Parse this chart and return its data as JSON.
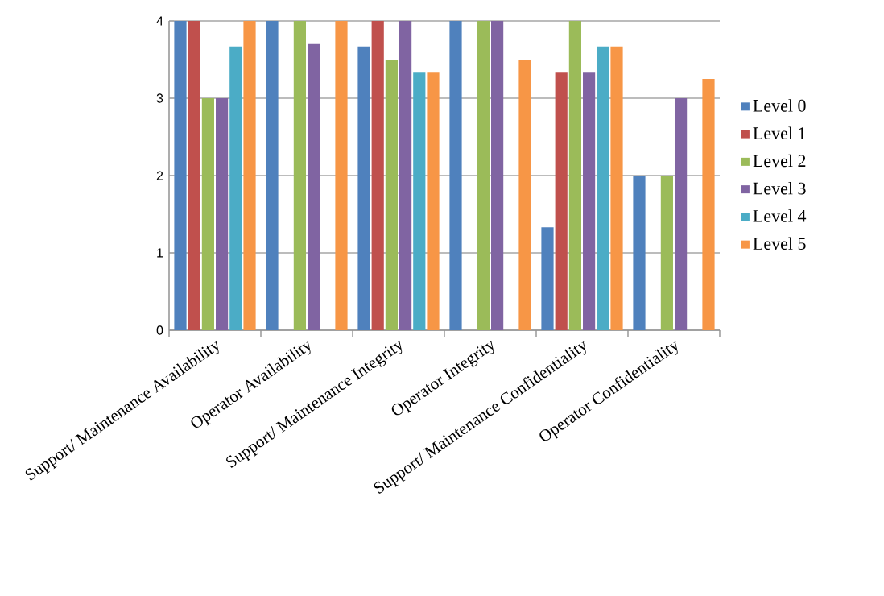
{
  "chart_data": {
    "type": "bar",
    "categories": [
      "Support/ Maintenance Availability",
      "Operator Availability",
      "Support/ Maintenance Integrity",
      "Operator Integrity",
      "Support/ Maintenance Confidentiality",
      "Operator Confidentiality"
    ],
    "series": [
      {
        "name": "Level 0",
        "color": "#4f81bd",
        "values": [
          4,
          4,
          3.67,
          4,
          1.33,
          2
        ]
      },
      {
        "name": "Level 1",
        "color": "#c0504d",
        "values": [
          4,
          0,
          4,
          0,
          3.33,
          0
        ]
      },
      {
        "name": "Level 2",
        "color": "#9bbb59",
        "values": [
          3,
          4,
          3.5,
          4,
          4,
          2
        ]
      },
      {
        "name": "Level 3",
        "color": "#8064a2",
        "values": [
          3,
          3.7,
          4,
          4,
          3.33,
          3
        ]
      },
      {
        "name": "Level 4",
        "color": "#4bacc6",
        "values": [
          3.67,
          0,
          3.33,
          0,
          3.67,
          0
        ]
      },
      {
        "name": "Level 5",
        "color": "#f79646",
        "values": [
          4,
          4,
          3.33,
          3.5,
          3.67,
          3.25
        ]
      }
    ],
    "ylim": [
      0,
      4
    ],
    "yticks": [
      0,
      1,
      2,
      3,
      4
    ],
    "grid": "y",
    "legend": "right"
  }
}
